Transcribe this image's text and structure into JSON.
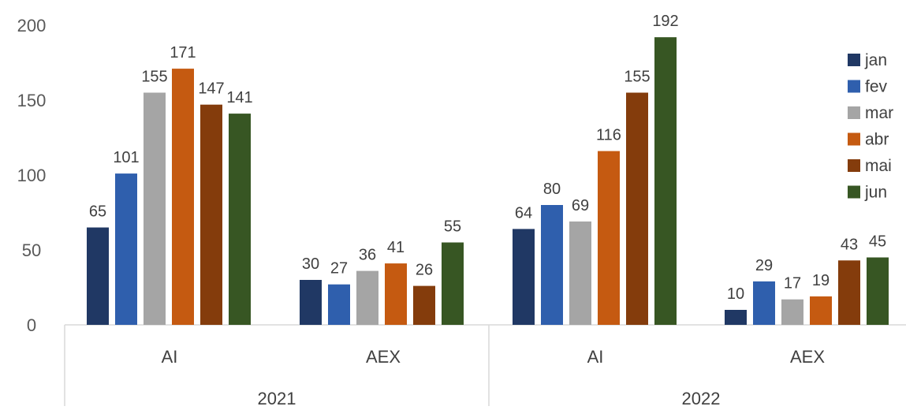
{
  "chart_data": {
    "type": "bar",
    "title": "",
    "xlabel": "",
    "ylabel": "",
    "ylim": [
      0,
      200
    ],
    "yticks": [
      "0",
      "50",
      "100",
      "150",
      "200"
    ],
    "grid": false,
    "legend_position": "right",
    "groups": [
      {
        "year": "2021",
        "categories": [
          "AI",
          "AEX"
        ]
      },
      {
        "year": "2022",
        "categories": [
          "AI",
          "AEX"
        ]
      }
    ],
    "series": [
      {
        "name": "jan",
        "color": "#203864",
        "values": [
          65,
          30,
          64,
          10
        ]
      },
      {
        "name": "fev",
        "color": "#2f5fad",
        "values": [
          101,
          27,
          80,
          29
        ]
      },
      {
        "name": "mar",
        "color": "#a5a5a5",
        "values": [
          155,
          36,
          69,
          17
        ]
      },
      {
        "name": "abr",
        "color": "#c55a11",
        "values": [
          171,
          41,
          116,
          19
        ]
      },
      {
        "name": "mai",
        "color": "#843c0c",
        "values": [
          147,
          26,
          155,
          43
        ]
      },
      {
        "name": "jun",
        "color": "#375623",
        "values": [
          141,
          55,
          192,
          45
        ]
      }
    ]
  }
}
